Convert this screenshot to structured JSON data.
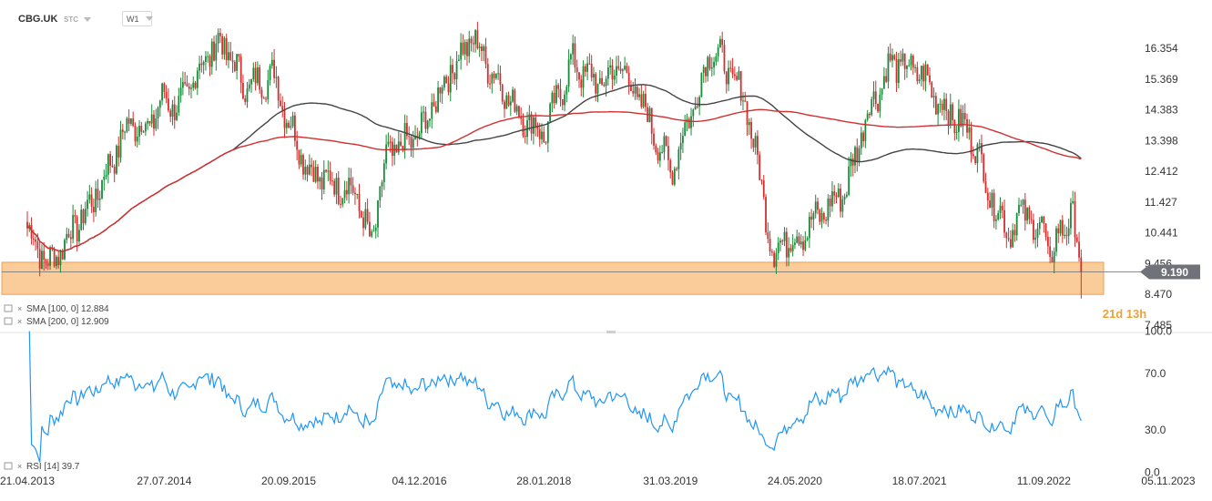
{
  "header": {
    "symbol": "CBG.UK",
    "instrument_type": "STC",
    "timeframe": "W1"
  },
  "price_labels": [
    "16.354",
    "15.369",
    "14.383",
    "13.398",
    "12.412",
    "11.427",
    "10.441",
    "9.456",
    "8.470",
    "7.485"
  ],
  "rsi_labels": [
    "100.0",
    "70.0",
    "30.0",
    "0.0"
  ],
  "date_labels": [
    "21.04.2013",
    "27.07.2014",
    "20.09.2015",
    "04.12.2016",
    "28.01.2018",
    "31.03.2019",
    "24.05.2020",
    "18.07.2021",
    "11.09.2022",
    "05.11.2023"
  ],
  "current_price": "9.190",
  "countdown": "21d 13h",
  "legend": {
    "sma_long": "SMA [100, 0] 12.884",
    "sma_short": "SMA [200, 0] 12.909",
    "rsi": "RSI [14] 39.7"
  },
  "colors": {
    "up": "#1a8a3a",
    "down": "#d32f2f",
    "sma_long": "#444444",
    "sma_short": "#d32f2f",
    "rsi": "#2196f3",
    "zone_fill": "#f8c68f",
    "zone_border": "#f0a050",
    "price_tag": "#6f7278",
    "countdown": "#e8a33c"
  },
  "chart_data": {
    "type": "candlestick",
    "timeframe": "weekly",
    "price_range": [
      7.485,
      16.9
    ],
    "support_zone": [
      8.47,
      9.5
    ],
    "last_price": 9.19,
    "anchors": [
      [
        "2013-04-21",
        10.6
      ],
      [
        "2013-07-01",
        9.4
      ],
      [
        "2013-12-01",
        11.5
      ],
      [
        "2014-04-01",
        14.0
      ],
      [
        "2014-06-01",
        13.8
      ],
      [
        "2014-07-27",
        14.8
      ],
      [
        "2014-09-15",
        14.4
      ],
      [
        "2014-12-01",
        15.9
      ],
      [
        "2015-02-01",
        16.6
      ],
      [
        "2015-05-01",
        15.1
      ],
      [
        "2015-08-01",
        15.5
      ],
      [
        "2015-09-20",
        14.0
      ],
      [
        "2015-12-01",
        12.4
      ],
      [
        "2016-02-01",
        12.1
      ],
      [
        "2016-05-01",
        11.8
      ],
      [
        "2016-06-24",
        10.0
      ],
      [
        "2016-08-15",
        12.9
      ],
      [
        "2016-12-04",
        13.6
      ],
      [
        "2017-03-15",
        15.6
      ],
      [
        "2017-06-01",
        16.7
      ],
      [
        "2017-08-01",
        15.7
      ],
      [
        "2017-11-01",
        14.3
      ],
      [
        "2018-01-28",
        13.6
      ],
      [
        "2018-05-01",
        15.9
      ],
      [
        "2018-08-01",
        15.2
      ],
      [
        "2018-10-15",
        15.8
      ],
      [
        "2019-01-01",
        14.4
      ],
      [
        "2019-03-31",
        12.4
      ],
      [
        "2019-07-01",
        14.9
      ],
      [
        "2019-08-15",
        16.4
      ],
      [
        "2019-10-15",
        15.6
      ],
      [
        "2019-12-15",
        14.5
      ],
      [
        "2020-03-15",
        9.6
      ],
      [
        "2020-04-15",
        10.3
      ],
      [
        "2020-05-24",
        10.2
      ],
      [
        "2020-09-15",
        11.3
      ],
      [
        "2020-11-15",
        11.9
      ],
      [
        "2021-01-15",
        14.1
      ],
      [
        "2021-04-15",
        15.9
      ],
      [
        "2021-07-18",
        15.6
      ],
      [
        "2021-10-15",
        14.4
      ],
      [
        "2022-01-15",
        13.5
      ],
      [
        "2022-03-15",
        11.6
      ],
      [
        "2022-05-15",
        10.5
      ],
      [
        "2022-07-15",
        11.2
      ],
      [
        "2022-08-15",
        10.4
      ],
      [
        "2022-09-11",
        10.8
      ],
      [
        "2022-10-01",
        9.4
      ],
      [
        "2022-11-01",
        10.5
      ],
      [
        "2022-12-15",
        11.0
      ],
      [
        "2023-01-20",
        9.19
      ]
    ],
    "indicators": {
      "sma_100": {
        "last": 12.884
      },
      "sma_200": {
        "last": 12.909
      },
      "rsi_14": {
        "last": 39.7,
        "range": [
          0,
          100
        ],
        "levels": [
          30,
          70
        ]
      }
    }
  }
}
